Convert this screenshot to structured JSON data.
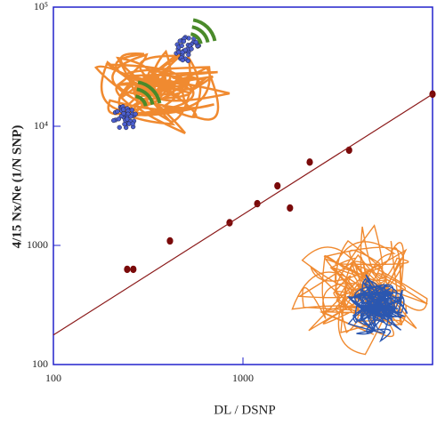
{
  "chart_data": {
    "type": "scatter",
    "xlabel": "DL / DSNP",
    "ylabel": "4/15 Nx/Ne (1/N SNP)",
    "xscale": "log",
    "yscale": "log",
    "xlim": [
      100,
      10000
    ],
    "ylim": [
      100,
      100000
    ],
    "xticks": [
      100,
      1000
    ],
    "yticks": [
      100,
      1000,
      {
        "value": 10000,
        "label": "10⁴"
      },
      {
        "value": 100000,
        "label": "10⁵"
      }
    ],
    "axis_color": "#2222cc",
    "series": [
      {
        "color": "#7a0a0a",
        "x": [
          245,
          264,
          412,
          850,
          1190,
          1520,
          1770,
          2250,
          3630,
          10000
        ],
        "values": [
          630,
          630,
          1090,
          1550,
          2240,
          3160,
          2060,
          5000,
          6300,
          18600
        ]
      },
      {
        "type": "line",
        "color": "#8b1a1a",
        "x": [
          100,
          10000
        ],
        "values": [
          177,
          18600
        ]
      }
    ]
  }
}
